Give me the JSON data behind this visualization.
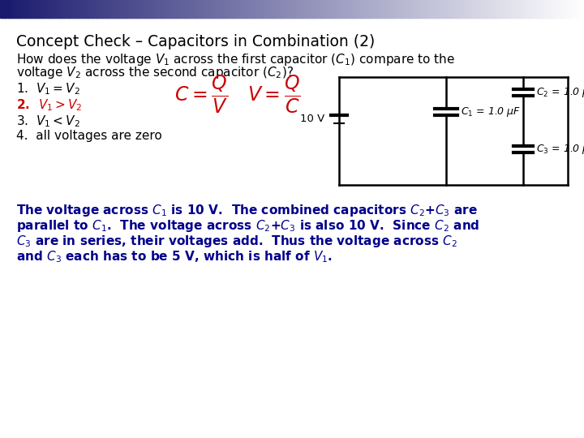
{
  "title": "Concept Check – Capacitors in Combination (2)",
  "title_color": "#000000",
  "title_fontsize": 13.5,
  "bg_color": "#ffffff",
  "question_line1": "How does the voltage $V_1$ across the first capacitor ($C_1$) compare to the",
  "question_line2": "voltage $V_2$ across the second capacitor ($C_2$)?",
  "question_color": "#000000",
  "question_fontsize": 11.0,
  "items": [
    {
      "num": "1.  ",
      "text": "$V_1 = V_2$",
      "bold": false,
      "color": "#000000"
    },
    {
      "num": "2.  ",
      "text": "$V_1 > V_2$",
      "bold": true,
      "color": "#cc0000"
    },
    {
      "num": "3.  ",
      "text": "$V_1 < V_2$",
      "bold": false,
      "color": "#000000"
    },
    {
      "num": "4.  ",
      "text": "all voltages are zero",
      "bold": false,
      "color": "#000000"
    }
  ],
  "items_fontsize": 11.0,
  "formula_color": "#cc0000",
  "circuit_color": "#000000",
  "answer_lines": [
    "The voltage across $C_1$ is 10 V.  The combined capacitors $C_2$+$C_3$ are",
    "parallel to $C_1$.  The voltage across $C_2$+$C_3$ is also 10 V.  Since $C_2$ and",
    "$C_3$ are in series, their voltages add.  Thus the voltage across $C_2$",
    "and $C_3$ each has to be 5 V, which is half of $V_1$."
  ],
  "answer_color": "#00008B",
  "answer_fontsize": 11.0,
  "navy": "#1a1a6e"
}
